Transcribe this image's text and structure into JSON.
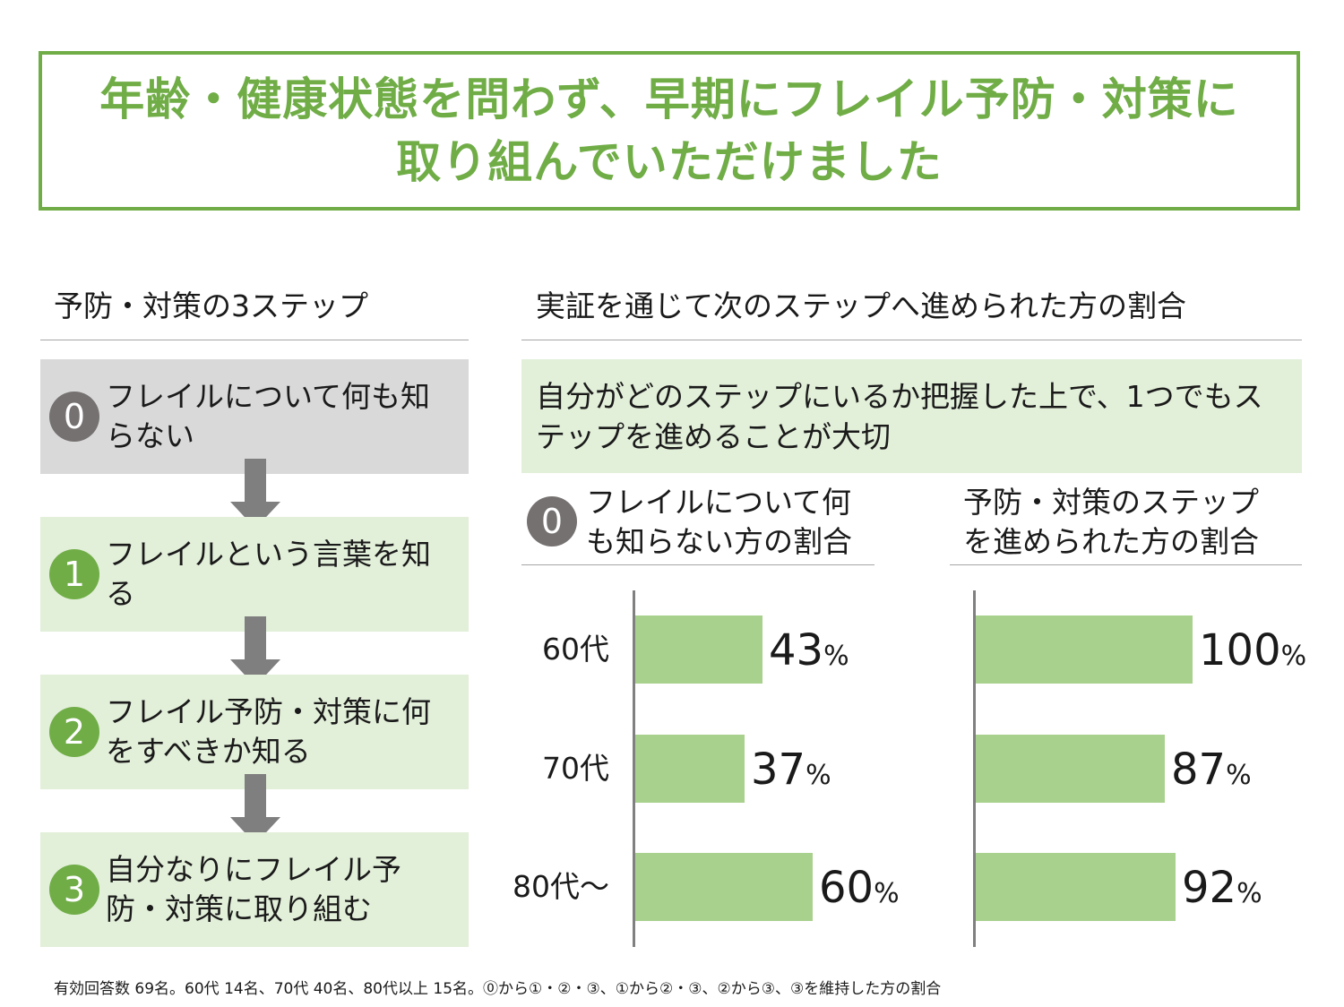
{
  "title": {
    "line1": "年齢・健康状態を問わず、早期にフレイル予防・対策に",
    "line2": "取り組んでいただけました"
  },
  "steps_section": {
    "heading": "予防・対策の3ステップ",
    "steps": [
      {
        "num": "0",
        "label": "フレイルについて何も知らない"
      },
      {
        "num": "1",
        "label": "フレイルという言葉を知る"
      },
      {
        "num": "2",
        "label": "フレイル予防・対策に何をすべきか知る"
      },
      {
        "num": "3",
        "label": "自分なりにフレイル予防・対策に取り組む"
      }
    ]
  },
  "results_section": {
    "heading": "実証を通じて次のステップへ進められた方の割合",
    "key_message": "自分がどのステップにいるか把握した上で、1つでもステップを進めることが大切"
  },
  "colors": {
    "accent": "#70ad47",
    "bar": "#a9d18e",
    "light_green": "#e2efd9",
    "gray_box": "#d9d9d9",
    "gray_circle": "#767171",
    "arrow": "#7f7f7f"
  },
  "chart_data": [
    {
      "type": "bar",
      "orientation": "horizontal",
      "badge": "0",
      "title": "フレイルについて何も知らない方の割合",
      "categories": [
        "60代",
        "70代",
        "80代〜"
      ],
      "values": [
        43,
        37,
        60
      ],
      "unit": "%",
      "xlim": [
        0,
        100
      ]
    },
    {
      "type": "bar",
      "orientation": "horizontal",
      "title": "予防・対策のステップを進められた方の割合",
      "categories": [
        "60代",
        "70代",
        "80代〜"
      ],
      "values": [
        100,
        87,
        92
      ],
      "unit": "%",
      "xlim": [
        0,
        100
      ]
    }
  ],
  "footnote": "有効回答数 69名。60代 14名、70代 40名、80代以上 15名。⓪から①・②・③、①から②・③、②から③、③を維持した方の割合"
}
